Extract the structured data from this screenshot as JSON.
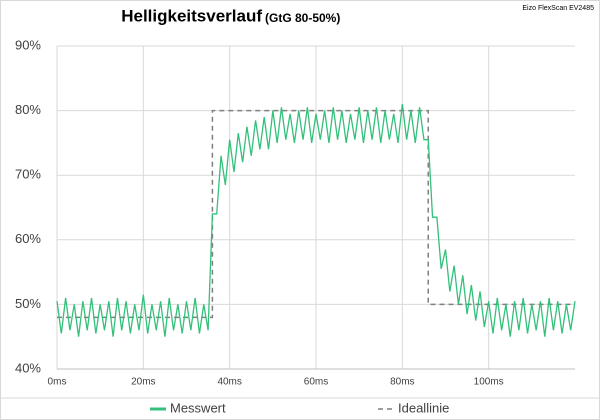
{
  "chart_data": {
    "type": "line",
    "title": "Helligkeitsverlauf",
    "subtitle": "(GtG 80-50%)",
    "annotation": "Eizo FlexScan EV2485",
    "xlim": [
      0,
      120
    ],
    "ylim": [
      40,
      90
    ],
    "grid": true,
    "legend": "bottom",
    "xticks": [
      {
        "value": 0,
        "label": "0ms"
      },
      {
        "value": 20,
        "label": "20ms"
      },
      {
        "value": 40,
        "label": "40ms"
      },
      {
        "value": 60,
        "label": "60ms"
      },
      {
        "value": 80,
        "label": "80ms"
      },
      {
        "value": 100,
        "label": "100ms"
      }
    ],
    "yticks": [
      {
        "value": 40,
        "label": "40%"
      },
      {
        "value": 50,
        "label": "50%"
      },
      {
        "value": 60,
        "label": "60%"
      },
      {
        "value": 70,
        "label": "70%"
      },
      {
        "value": 80,
        "label": "80%"
      },
      {
        "value": 90,
        "label": "90%"
      }
    ],
    "series": [
      {
        "name": "Messwert",
        "color": "#33c07a",
        "style": "solid",
        "x": [
          0,
          1,
          2,
          3,
          4,
          5,
          6,
          7,
          8,
          9,
          10,
          11,
          12,
          13,
          14,
          15,
          16,
          17,
          18,
          19,
          20,
          21,
          22,
          23,
          24,
          25,
          26,
          27,
          28,
          29,
          30,
          31,
          32,
          33,
          34,
          35,
          36,
          37,
          38,
          39,
          40,
          41,
          42,
          43,
          44,
          45,
          46,
          47,
          48,
          49,
          50,
          51,
          52,
          53,
          54,
          55,
          56,
          57,
          58,
          59,
          60,
          61,
          62,
          63,
          64,
          65,
          66,
          67,
          68,
          69,
          70,
          71,
          72,
          73,
          74,
          75,
          76,
          77,
          78,
          79,
          80,
          81,
          82,
          83,
          84,
          85,
          86,
          87,
          88,
          89,
          90,
          91,
          92,
          93,
          94,
          95,
          96,
          97,
          98,
          99,
          100,
          101,
          102,
          103,
          104,
          105,
          106,
          107,
          108,
          109,
          110,
          111,
          112,
          113,
          114,
          115,
          116,
          117,
          118,
          119,
          120
        ],
        "values": [
          50.5,
          45.5,
          51,
          46,
          50,
          45,
          50.5,
          46,
          51,
          45.5,
          50,
          46,
          50.5,
          45,
          51,
          46,
          50.5,
          45.5,
          50,
          46,
          51.5,
          45.5,
          50,
          46,
          50.5,
          45,
          51,
          46,
          50,
          45.5,
          50.5,
          46,
          51,
          45.5,
          50,
          46,
          64,
          64,
          73,
          68.5,
          75.5,
          70.5,
          76.5,
          72,
          77.5,
          73,
          78.5,
          74,
          79,
          74,
          80,
          75,
          80.5,
          75.5,
          79.5,
          75,
          80,
          75.5,
          80.5,
          75,
          79.5,
          75.5,
          80,
          75,
          80.5,
          75.5,
          80,
          75,
          79.5,
          75.5,
          80.5,
          75,
          80,
          75.5,
          80.5,
          75,
          80,
          75.5,
          79.5,
          75,
          81,
          75.5,
          80,
          75,
          80.5,
          75.5,
          75.5,
          63.5,
          63.5,
          55.5,
          58.5,
          52,
          56,
          50,
          54.5,
          48.5,
          53,
          47.5,
          52,
          46.5,
          50.5,
          45.5,
          51,
          46,
          50,
          45,
          50.5,
          46,
          51,
          45.5,
          50,
          46,
          50.5,
          45,
          51,
          46,
          50.5,
          45.5,
          50,
          46,
          50.5
        ]
      },
      {
        "name": "Ideallinie",
        "color": "#7f7f7f",
        "style": "dashed",
        "x": [
          0,
          36,
          36,
          86,
          86,
          120
        ],
        "values": [
          48,
          48,
          80,
          80,
          50,
          50
        ]
      }
    ]
  }
}
